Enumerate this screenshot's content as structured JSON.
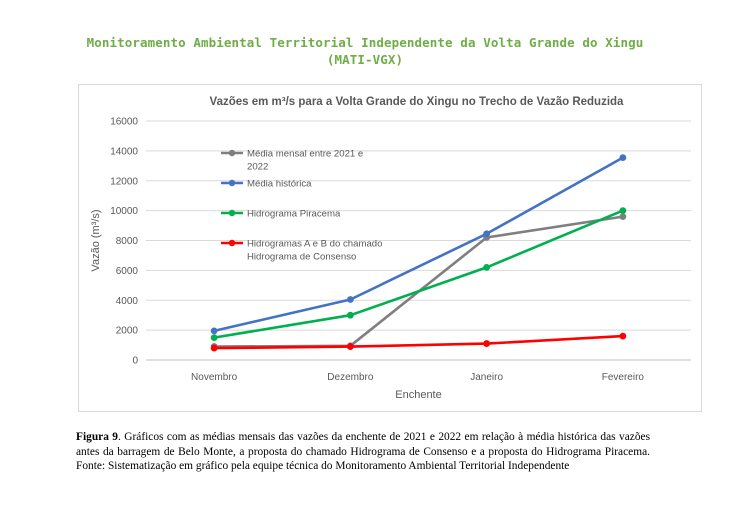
{
  "document": {
    "heading": "Monitoramento Ambiental Territorial Independente da Volta Grande do Xingu (MATI-VGX)",
    "caption_label": "Figura 9",
    "caption_text": ". Gráficos com as médias mensais das vazões da enchente de 2021 e 2022 em relação à média histórica das vazões antes da barragem de Belo Monte, a proposta do chamado Hidrograma de Consenso e a proposta do Hidrograma Piracema. Fonte: Sistematização em gráfico pela equipe técnica do Monitoramento Ambiental Territorial Independente"
  },
  "chart_data": {
    "type": "line",
    "title": "Vazões em m³/s para a Volta Grande do Xingu no Trecho de Vazão Reduzida",
    "xlabel": "Enchente",
    "ylabel": "Vazão (m³/s)",
    "categories": [
      "Novembro",
      "Dezembro",
      "Janeiro",
      "Fevereiro"
    ],
    "ylim": [
      0,
      16000
    ],
    "yticks": [
      "0",
      "2000",
      "4000",
      "6000",
      "8000",
      "10000",
      "12000",
      "14000",
      "16000"
    ],
    "grid": true,
    "legend_position": "inside-top-left",
    "series": [
      {
        "name": "Média mensal entre 2021 e 2022",
        "legend_lines": [
          "Média mensal entre 2021 e",
          "2022"
        ],
        "color": "#7f7f7f",
        "values": [
          900,
          950,
          8200,
          9600
        ]
      },
      {
        "name": "Média histórica",
        "legend_lines": [
          "Média histórica"
        ],
        "color": "#4472c4",
        "values": [
          1950,
          4050,
          8450,
          13550
        ]
      },
      {
        "name": "Hidrograma Piracema",
        "legend_lines": [
          "Hidrograma Piracema"
        ],
        "color": "#00b050",
        "values": [
          1500,
          3000,
          6200,
          10000
        ]
      },
      {
        "name": "Hidrogramas A e B do chamado Hidrograma de Consenso",
        "legend_lines": [
          "Hidrogramas A e B do chamado",
          "Hidrograma de Consenso"
        ],
        "color": "#ff0000",
        "values": [
          800,
          900,
          1100,
          1600
        ]
      }
    ]
  }
}
